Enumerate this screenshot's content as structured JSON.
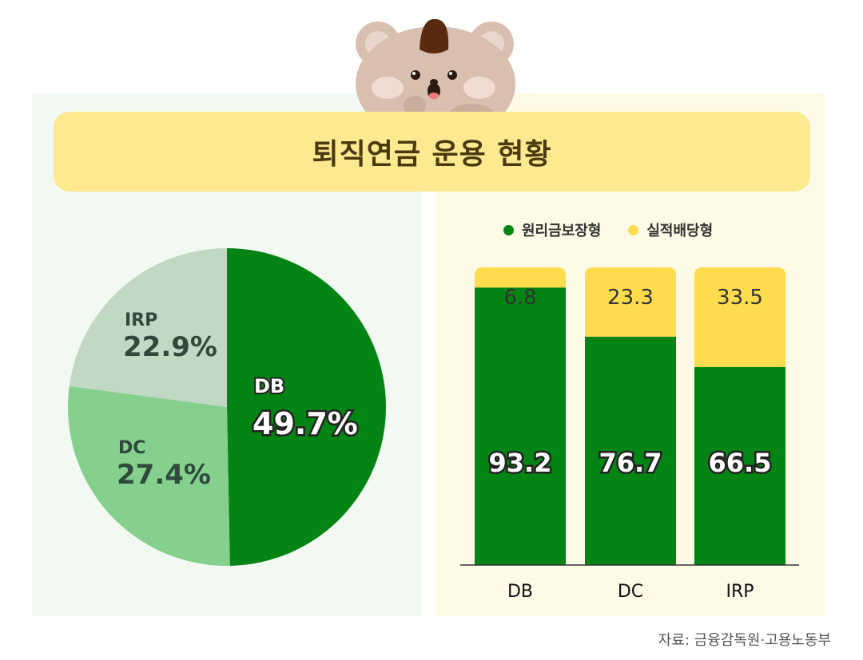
{
  "title": "퇴직연금 운용 현황",
  "source": "자료: 금융감독원·고용노동부",
  "colors": {
    "dark_green": "#048414",
    "light_green": "#84d08c",
    "pale_green": "#c1d8c3",
    "yellow": "#fedc4e",
    "title_bg": "#fde98f"
  },
  "chart_data": [
    {
      "type": "pie",
      "slices": [
        {
          "label": "DB",
          "value": 49.7,
          "display": "49.7%"
        },
        {
          "label": "DC",
          "value": 27.4,
          "display": "27.4%"
        },
        {
          "label": "IRP",
          "value": 22.9,
          "display": "22.9%"
        }
      ]
    },
    {
      "type": "bar",
      "stacked": true,
      "categories": [
        "DB",
        "DC",
        "IRP"
      ],
      "series": [
        {
          "name": "원리금보장형",
          "values": [
            93.2,
            76.7,
            66.5
          ],
          "labels": [
            "93.2",
            "76.7",
            "66.5"
          ]
        },
        {
          "name": "실적배당형",
          "values": [
            6.8,
            23.3,
            33.5
          ],
          "labels": [
            "6.8",
            "23.3",
            "33.5"
          ]
        }
      ],
      "ylim": [
        0,
        100
      ],
      "legend_position": "top"
    }
  ]
}
